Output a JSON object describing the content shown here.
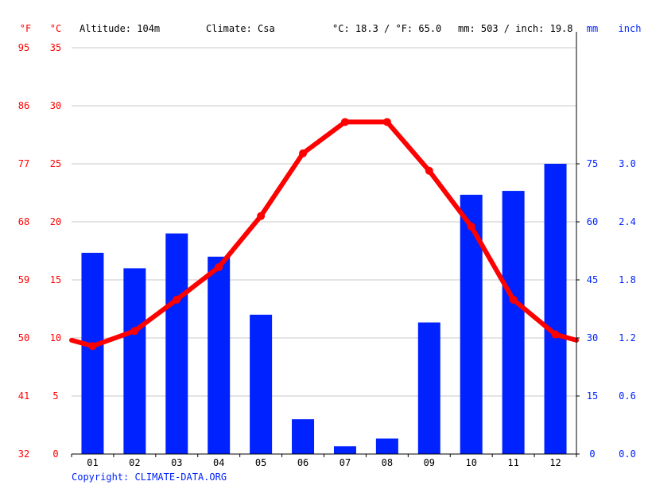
{
  "header": {
    "unit_f": "°F",
    "unit_c": "°C",
    "altitude": "Altitude: 104m",
    "climate": "Climate: Csa",
    "avg_temp": "°C: 18.3 / °F: 65.0",
    "precip_total": "mm: 503 / inch: 19.8",
    "unit_mm": "mm",
    "unit_inch": "inch"
  },
  "footer": {
    "copyright": "Copyright: CLIMATE-DATA.ORG"
  },
  "colors": {
    "temperature": "#ff0000",
    "precipitation": "#0022ff",
    "axis_left_text": "#ff0000",
    "axis_right_text": "#0022ff",
    "grid": "#c8c8c8",
    "text": "#000000"
  },
  "chart_data": {
    "type": "bar",
    "categories": [
      "01",
      "02",
      "03",
      "04",
      "05",
      "06",
      "07",
      "08",
      "09",
      "10",
      "11",
      "12"
    ],
    "series": [
      {
        "type": "bar",
        "axis": "right",
        "unit": "mm",
        "values": [
          52,
          48,
          57,
          51,
          36,
          9,
          2,
          4,
          34,
          67,
          68,
          75
        ]
      },
      {
        "type": "line",
        "axis": "left",
        "unit": "°C",
        "values": [
          9.3,
          10.6,
          13.3,
          16.1,
          20.5,
          25.9,
          28.6,
          28.6,
          24.4,
          19.6,
          13.3,
          10.3
        ]
      }
    ],
    "y_left_ticks_c": [
      "0",
      "5",
      "10",
      "15",
      "20",
      "25",
      "30",
      "35"
    ],
    "y_left_ticks_f": [
      "32",
      "41",
      "50",
      "59",
      "68",
      "77",
      "86",
      "95"
    ],
    "y_right_ticks_mm": [
      "0",
      "15",
      "30",
      "45",
      "60",
      "75"
    ],
    "y_right_ticks_inch": [
      "0.0",
      "0.6",
      "1.2",
      "1.8",
      "2.4",
      "3.0"
    ],
    "y_left_range_c": [
      0,
      35
    ],
    "y_right_range_mm": [
      0,
      105
    ],
    "grid": true,
    "line_start_c": 9.8,
    "line_end_c": 9.8
  }
}
